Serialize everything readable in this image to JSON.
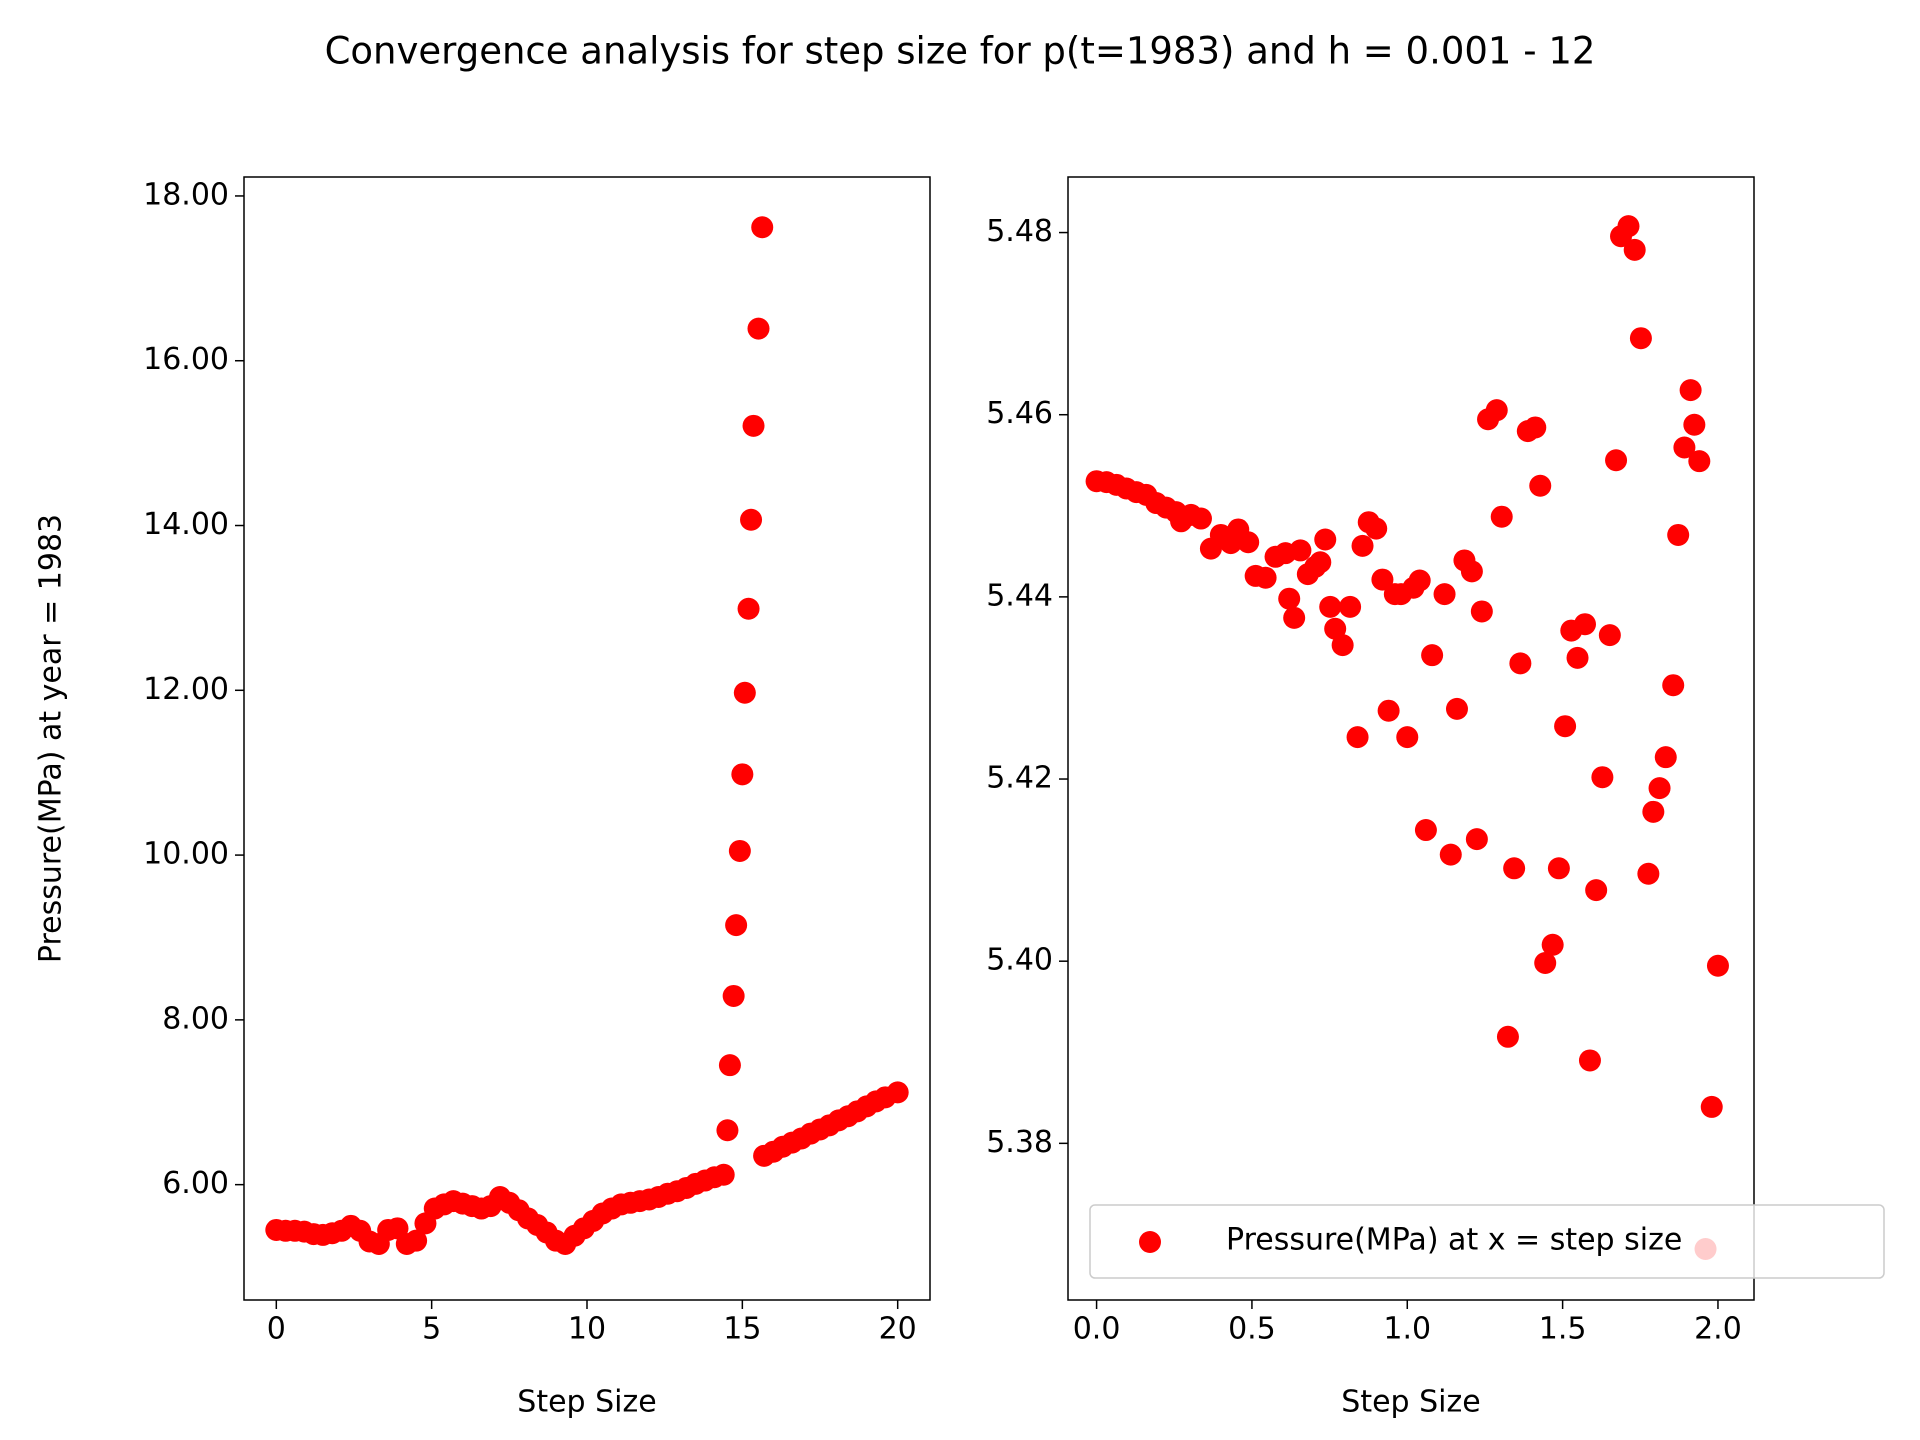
{
  "title": "Convergence analysis for step size for p(t=1983) and h = 0.001 - 12",
  "chart_data": [
    {
      "type": "scatter",
      "xlabel": "Step Size",
      "ylabel": "Pressure(MPa) at year = 1983",
      "xlim": [
        -1.04,
        21.04
      ],
      "ylim": [
        4.6,
        18.23
      ],
      "xticks": [
        0,
        5,
        10,
        15,
        20
      ],
      "yticks": [
        {
          "value": 6,
          "label": "6.00"
        },
        {
          "value": 8,
          "label": "8.00"
        },
        {
          "value": 10,
          "label": "10.00"
        },
        {
          "value": 12,
          "label": "12.00"
        },
        {
          "value": 14,
          "label": "14.00"
        },
        {
          "value": 16,
          "label": "16.00"
        },
        {
          "value": 18,
          "label": "18.00"
        }
      ],
      "series": [
        {
          "color": "#ff0000",
          "x": [
            0.0,
            0.3,
            0.6,
            0.9,
            1.2,
            1.5,
            1.8,
            2.1,
            2.4,
            2.7,
            3.0,
            3.3,
            3.6,
            3.9,
            4.2,
            4.5,
            4.8,
            5.1,
            5.4,
            5.7,
            6.0,
            6.3,
            6.6,
            6.9,
            7.2,
            7.5,
            7.8,
            8.1,
            8.4,
            8.7,
            9.0,
            9.3,
            9.6,
            9.9,
            10.2,
            10.5,
            10.8,
            11.1,
            11.4,
            11.7,
            12.0,
            12.3,
            12.6,
            12.9,
            13.2,
            13.5,
            13.8,
            14.1,
            14.4,
            14.52,
            14.6,
            14.72,
            14.8,
            14.92,
            15.0,
            15.08,
            15.2,
            15.28,
            15.36,
            15.52,
            15.64,
            15.7,
            16.0,
            16.3,
            16.6,
            16.9,
            17.2,
            17.5,
            17.8,
            18.1,
            18.4,
            18.7,
            19.0,
            19.3,
            19.6,
            20.0
          ],
          "values": [
            5.45,
            5.44,
            5.44,
            5.43,
            5.4,
            5.39,
            5.41,
            5.44,
            5.5,
            5.44,
            5.31,
            5.28,
            5.45,
            5.47,
            5.28,
            5.32,
            5.53,
            5.71,
            5.76,
            5.8,
            5.77,
            5.74,
            5.71,
            5.74,
            5.85,
            5.78,
            5.69,
            5.59,
            5.51,
            5.42,
            5.32,
            5.28,
            5.38,
            5.47,
            5.56,
            5.65,
            5.71,
            5.76,
            5.78,
            5.8,
            5.82,
            5.85,
            5.89,
            5.92,
            5.96,
            6.01,
            6.05,
            6.09,
            6.12,
            6.66,
            7.45,
            8.29,
            9.15,
            10.05,
            10.98,
            11.97,
            12.99,
            14.07,
            15.21,
            16.39,
            17.62,
            6.35,
            6.4,
            6.46,
            6.51,
            6.56,
            6.62,
            6.67,
            6.72,
            6.78,
            6.83,
            6.89,
            6.95,
            7.01,
            7.06,
            7.12
          ]
        }
      ]
    },
    {
      "type": "scatter",
      "xlabel": "Step Size",
      "legend": "lower right",
      "xlim": [
        -0.092,
        2.116
      ],
      "ylim": [
        5.3628,
        5.4861
      ],
      "xticks": [
        {
          "value": 0,
          "label": "0.0"
        },
        0.5,
        {
          "value": 1,
          "label": "1.0"
        },
        1.5,
        {
          "value": 2,
          "label": "2.0"
        }
      ],
      "yticks": [
        5.38,
        {
          "value": 5.4,
          "label": "5.40"
        },
        5.42,
        5.44,
        5.46,
        5.48
      ],
      "series": [
        {
          "name": "Pressure(MPa) at x = step size",
          "color": "#ff0000",
          "x": [
            0,
            0.032,
            0.064,
            0.096,
            0.128,
            0.16,
            0.192,
            0.224,
            0.256,
            0.272,
            0.304,
            0.336,
            0.368,
            0.4,
            0.432,
            0.456,
            0.488,
            0.512,
            0.544,
            0.576,
            0.608,
            0.62,
            0.636,
            0.656,
            0.68,
            0.704,
            0.72,
            0.736,
            0.752,
            0.768,
            0.792,
            0.816,
            0.84,
            0.856,
            0.876,
            0.9,
            0.92,
            0.94,
            0.96,
            0.98,
            1.0,
            1.02,
            1.04,
            1.06,
            1.08,
            1.12,
            1.14,
            1.16,
            1.184,
            1.208,
            1.224,
            1.24,
            1.26,
            1.288,
            1.304,
            1.324,
            1.344,
            1.364,
            1.388,
            1.412,
            1.428,
            1.444,
            1.468,
            1.488,
            1.508,
            1.528,
            1.548,
            1.572,
            1.588,
            1.608,
            1.628,
            1.652,
            1.672,
            1.688,
            1.712,
            1.732,
            1.752,
            1.776,
            1.792,
            1.812,
            1.832,
            1.856,
            1.872,
            1.892,
            1.912,
            1.924,
            1.94,
            1.96,
            1.98,
            2.0
          ],
          "values": [
            5.4527,
            5.4526,
            5.4523,
            5.4519,
            5.4515,
            5.4512,
            5.4503,
            5.4498,
            5.4493,
            5.4483,
            5.449,
            5.4486,
            5.4453,
            5.4468,
            5.4459,
            5.4474,
            5.446,
            5.4423,
            5.4421,
            5.4444,
            5.4448,
            5.4398,
            5.4377,
            5.4451,
            5.4425,
            5.4433,
            5.4438,
            5.4463,
            5.4389,
            5.4365,
            5.4347,
            5.4389,
            5.4246,
            5.4456,
            5.4482,
            5.4475,
            5.4419,
            5.4275,
            5.4403,
            5.4403,
            5.4246,
            5.441,
            5.4418,
            5.4144,
            5.4336,
            5.4403,
            5.4117,
            5.4277,
            5.444,
            5.4428,
            5.4134,
            5.4384,
            5.4595,
            5.4605,
            5.4488,
            5.3917,
            5.4102,
            5.4327,
            5.4582,
            5.4586,
            5.4522,
            5.3998,
            5.4018,
            5.4102,
            5.4258,
            5.4363,
            5.4333,
            5.437,
            5.3891,
            5.4078,
            5.4202,
            5.4358,
            5.455,
            5.4796,
            5.4807,
            5.4781,
            5.4684,
            5.4096,
            5.4164,
            5.419,
            5.4224,
            5.4303,
            5.4468,
            5.4564,
            5.4627,
            5.4589,
            5.4549,
            5.3684,
            5.384,
            5.3995
          ]
        }
      ]
    }
  ]
}
